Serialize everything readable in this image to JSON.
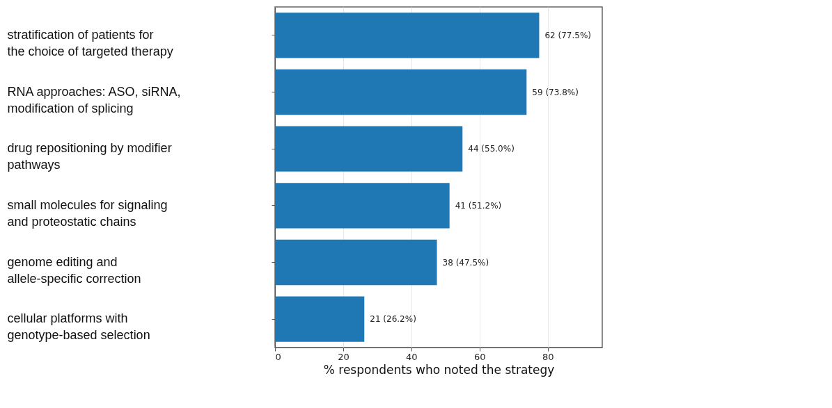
{
  "chart_data": {
    "type": "bar",
    "orientation": "horizontal",
    "xlabel": "% respondents who noted the strategy",
    "categories": [
      "stratification of patients for the choice of targeted therapy",
      "RNA approaches: ASO, siRNA, modification of splicing",
      "drug repositioning by modifier pathways",
      "small molecules for signaling and proteostatic chains",
      "genome editing and allele-specific correction",
      "cellular platforms with genotype-based selection"
    ],
    "values": [
      77.5,
      73.8,
      55.0,
      51.2,
      47.5,
      26.2
    ],
    "value_labels": [
      "62 (77.5%)",
      "59 (73.8%)",
      "44 (55.0%)",
      "41 (51.2%)",
      "38 (47.5%)",
      "21 (26.2%)"
    ],
    "color": "#1f77b4",
    "xlim": [
      0,
      96
    ],
    "xticks": [
      0,
      20,
      40,
      60,
      80
    ],
    "grid": "x"
  }
}
